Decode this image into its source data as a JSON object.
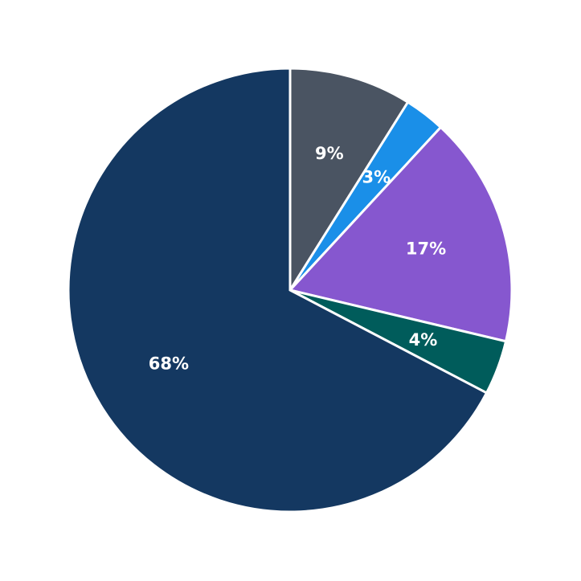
{
  "chart_data": {
    "type": "pie",
    "title": "",
    "start_angle_deg": 90,
    "direction": "clockwise",
    "slices": [
      {
        "label": "9%",
        "value": 9,
        "color": "#4a5462"
      },
      {
        "label": "3%",
        "value": 3,
        "color": "#1a8fe8"
      },
      {
        "label": "17%",
        "value": 17,
        "color": "#8657cf"
      },
      {
        "label": "4%",
        "value": 4,
        "color": "#005c5b"
      },
      {
        "label": "68%",
        "value": 68,
        "color": "#143861"
      }
    ],
    "slice_border_color": "#ffffff",
    "label_color": "#ffffff",
    "legend": "none",
    "grid": false
  }
}
